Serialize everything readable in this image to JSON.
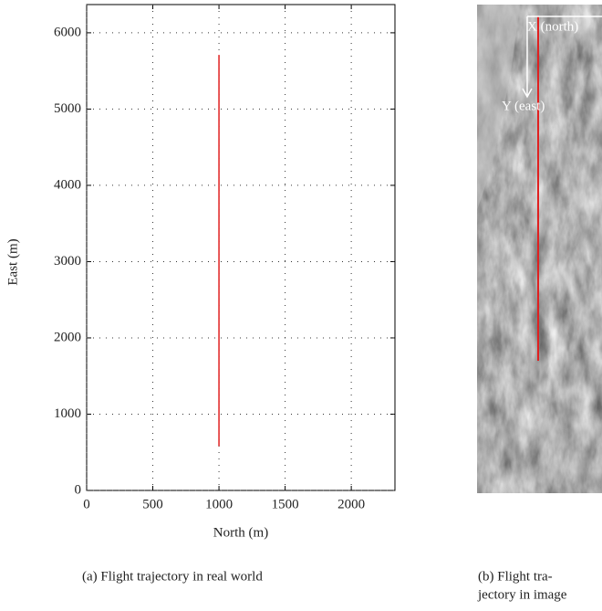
{
  "chart_data": {
    "type": "line",
    "xlabel": "North (m)",
    "ylabel": "East (m)",
    "caption": "(a)  Flight trajectory in real world",
    "x": [
      1000,
      1000
    ],
    "values": [
      580,
      5710
    ],
    "color": "#e02020",
    "xlim": [
      0,
      2330
    ],
    "xticks": [
      0,
      500,
      1000,
      1500,
      2000
    ],
    "ylim": [
      0,
      6370
    ],
    "yticks": [
      0,
      1000,
      2000,
      3000,
      4000,
      5000,
      6000
    ],
    "grid": true
  },
  "panel_b": {
    "x_axis_label": "X (north)",
    "y_axis_label": "Y (east)",
    "caption_lines": [
      "(b)  Flight tra-",
      "jectory in image"
    ]
  }
}
